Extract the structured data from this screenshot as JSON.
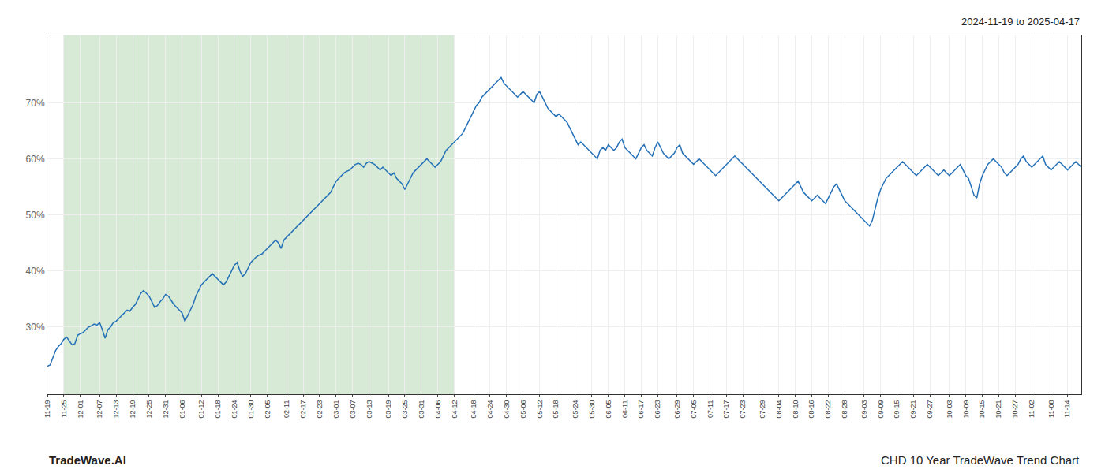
{
  "chart_data": {
    "type": "line",
    "title": "CHD 10 Year TradeWave Trend Chart",
    "subtitle": "2024-11-19 to 2025-04-17",
    "annotations": [
      {
        "text": "TradeWave.AI"
      }
    ],
    "color": "#2571b8",
    "shaded": {
      "start": "11-25",
      "end": "04-12",
      "color": "#d6ead6"
    },
    "ylim": [
      18,
      82
    ],
    "yticks": [
      {
        "value": 30,
        "label": "30%"
      },
      {
        "value": 40,
        "label": "40%"
      },
      {
        "value": 50,
        "label": "50%"
      },
      {
        "value": 60,
        "label": "60%"
      },
      {
        "value": 70,
        "label": "70%"
      }
    ],
    "grid": true,
    "categories": [
      "11-19",
      null,
      null,
      null,
      null,
      null,
      "11-25",
      null,
      null,
      null,
      null,
      null,
      "12-01",
      null,
      null,
      null,
      null,
      null,
      null,
      "12-07",
      null,
      null,
      null,
      null,
      null,
      "12-13",
      null,
      null,
      null,
      null,
      null,
      "12-19",
      null,
      null,
      null,
      null,
      null,
      "12-25",
      null,
      null,
      null,
      null,
      null,
      "12-31",
      null,
      null,
      null,
      null,
      null,
      "01-06",
      null,
      null,
      null,
      null,
      null,
      null,
      "01-12",
      null,
      null,
      null,
      null,
      null,
      "01-18",
      null,
      null,
      null,
      null,
      null,
      "01-24",
      null,
      null,
      null,
      null,
      null,
      "01-30",
      null,
      null,
      null,
      null,
      null,
      "02-05",
      null,
      null,
      null,
      null,
      null,
      null,
      "02-11",
      null,
      null,
      null,
      null,
      null,
      "02-17",
      null,
      null,
      null,
      null,
      null,
      "02-23",
      null,
      null,
      null,
      null,
      null,
      "03-01",
      null,
      null,
      null,
      null,
      null,
      "03-07",
      null,
      null,
      null,
      null,
      null,
      "03-13",
      null,
      null,
      null,
      null,
      null,
      null,
      "03-19",
      null,
      null,
      null,
      null,
      null,
      "03-25",
      null,
      null,
      null,
      null,
      null,
      "03-31",
      null,
      null,
      null,
      null,
      null,
      "04-06",
      null,
      null,
      null,
      null,
      null,
      "04-12",
      null,
      null,
      null,
      null,
      null,
      null,
      "04-18",
      null,
      null,
      null,
      null,
      null,
      "04-24",
      null,
      null,
      null,
      null,
      null,
      "04-30",
      null,
      null,
      null,
      null,
      null,
      "05-06",
      null,
      null,
      null,
      null,
      null,
      "05-12",
      null,
      null,
      null,
      null,
      null,
      "05-18",
      null,
      null,
      null,
      null,
      null,
      null,
      "05-24",
      null,
      null,
      null,
      null,
      null,
      "05-30",
      null,
      null,
      null,
      null,
      null,
      "06-05",
      null,
      null,
      null,
      null,
      null,
      "06-11",
      null,
      null,
      null,
      null,
      null,
      "06-17",
      null,
      null,
      null,
      null,
      null,
      "06-23",
      null,
      null,
      null,
      null,
      null,
      null,
      "06-29",
      null,
      null,
      null,
      null,
      null,
      "07-05",
      null,
      null,
      null,
      null,
      null,
      "07-11",
      null,
      null,
      null,
      null,
      null,
      "07-17",
      null,
      null,
      null,
      null,
      null,
      "07-23",
      null,
      null,
      null,
      null,
      null,
      null,
      "07-29",
      null,
      null,
      null,
      null,
      null,
      "08-04",
      null,
      null,
      null,
      null,
      null,
      "08-10",
      null,
      null,
      null,
      null,
      null,
      "08-16",
      null,
      null,
      null,
      null,
      null,
      "08-22",
      null,
      null,
      null,
      null,
      null,
      "08-28",
      null,
      null,
      null,
      null,
      null,
      null,
      "09-03",
      null,
      null,
      null,
      null,
      null,
      "09-09",
      null,
      null,
      null,
      null,
      null,
      "09-15",
      null,
      null,
      null,
      null,
      null,
      "09-21",
      null,
      null,
      null,
      null,
      null,
      "09-27",
      null,
      null,
      null,
      null,
      null,
      null,
      "10-03",
      null,
      null,
      null,
      null,
      null,
      "10-09",
      null,
      null,
      null,
      null,
      null,
      "10-15",
      null,
      null,
      null,
      null,
      null,
      "10-21",
      null,
      null,
      null,
      null,
      null,
      "10-27",
      null,
      null,
      null,
      null,
      null,
      "11-02",
      null,
      null,
      null,
      null,
      null,
      null,
      "11-08",
      null,
      null,
      null,
      null,
      null,
      "11-14",
      null,
      null,
      null,
      null,
      null
    ],
    "values": [
      23.0,
      23.2,
      24.5,
      25.8,
      26.5,
      27.0,
      27.8,
      28.2,
      27.5,
      26.8,
      27.0,
      28.5,
      28.8,
      29.0,
      29.5,
      30.0,
      30.2,
      30.5,
      30.3,
      30.8,
      29.5,
      28.0,
      29.5,
      30.0,
      30.8,
      31.0,
      31.5,
      32.0,
      32.5,
      33.0,
      32.8,
      33.5,
      34.0,
      35.0,
      36.0,
      36.5,
      36.0,
      35.5,
      34.5,
      33.5,
      33.8,
      34.5,
      35.0,
      35.8,
      35.5,
      34.8,
      34.0,
      33.5,
      33.0,
      32.5,
      31.0,
      32.0,
      33.0,
      34.0,
      35.5,
      36.5,
      37.5,
      38.0,
      38.5,
      39.0,
      39.5,
      39.0,
      38.5,
      38.0,
      37.5,
      38.0,
      39.0,
      40.0,
      41.0,
      41.5,
      40.0,
      39.0,
      39.5,
      40.5,
      41.5,
      42.0,
      42.5,
      42.8,
      43.0,
      43.5,
      44.0,
      44.5,
      45.0,
      45.5,
      45.0,
      44.0,
      45.5,
      46.0,
      46.5,
      47.0,
      47.5,
      48.0,
      48.5,
      49.0,
      49.5,
      50.0,
      50.5,
      51.0,
      51.5,
      52.0,
      52.5,
      53.0,
      53.5,
      54.0,
      55.0,
      56.0,
      56.5,
      57.0,
      57.5,
      57.8,
      58.0,
      58.5,
      59.0,
      59.2,
      59.0,
      58.5,
      59.2,
      59.5,
      59.3,
      59.0,
      58.5,
      58.0,
      58.5,
      58.0,
      57.5,
      57.0,
      57.5,
      56.5,
      56.0,
      55.5,
      54.5,
      55.5,
      56.5,
      57.5,
      58.0,
      58.5,
      59.0,
      59.5,
      60.0,
      59.5,
      59.0,
      58.5,
      59.0,
      59.5,
      60.5,
      61.5,
      62.0,
      62.5,
      63.0,
      63.5,
      64.0,
      64.5,
      65.5,
      66.5,
      67.5,
      68.5,
      69.5,
      70.0,
      71.0,
      71.5,
      72.0,
      72.5,
      73.0,
      73.5,
      74.0,
      74.5,
      73.5,
      73.0,
      72.5,
      72.0,
      71.5,
      71.0,
      71.5,
      72.0,
      71.5,
      71.0,
      70.5,
      70.0,
      71.5,
      72.0,
      71.0,
      70.0,
      69.0,
      68.5,
      68.0,
      67.5,
      68.0,
      67.5,
      67.0,
      66.5,
      65.5,
      64.5,
      63.5,
      62.5,
      63.0,
      62.5,
      62.0,
      61.5,
      61.0,
      60.5,
      60.0,
      61.5,
      62.0,
      61.5,
      62.5,
      62.0,
      61.5,
      62.0,
      63.0,
      63.5,
      62.0,
      61.5,
      61.0,
      60.5,
      60.0,
      61.0,
      62.0,
      62.5,
      61.5,
      61.0,
      60.5,
      62.0,
      63.0,
      62.0,
      61.0,
      60.5,
      60.0,
      60.5,
      61.0,
      62.0,
      62.5,
      61.0,
      60.5,
      60.0,
      59.5,
      59.0,
      59.5,
      60.0,
      59.5,
      59.0,
      58.5,
      58.0,
      57.5,
      57.0,
      57.5,
      58.0,
      58.5,
      59.0,
      59.5,
      60.0,
      60.5,
      60.0,
      59.5,
      59.0,
      58.5,
      58.0,
      57.5,
      57.0,
      56.5,
      56.0,
      55.5,
      55.0,
      54.5,
      54.0,
      53.5,
      53.0,
      52.5,
      53.0,
      53.5,
      54.0,
      54.5,
      55.0,
      55.5,
      56.0,
      55.0,
      54.0,
      53.5,
      53.0,
      52.5,
      53.0,
      53.5,
      53.0,
      52.5,
      52.0,
      53.0,
      54.0,
      55.0,
      55.5,
      54.5,
      53.5,
      52.5,
      52.0,
      51.5,
      51.0,
      50.5,
      50.0,
      49.5,
      49.0,
      48.5,
      48.0,
      49.0,
      51.0,
      53.0,
      54.5,
      55.5,
      56.5,
      57.0,
      57.5,
      58.0,
      58.5,
      59.0,
      59.5,
      59.0,
      58.5,
      58.0,
      57.5,
      57.0,
      57.5,
      58.0,
      58.5,
      59.0,
      58.5,
      58.0,
      57.5,
      57.0,
      57.5,
      58.0,
      57.5,
      57.0,
      57.5,
      58.0,
      58.5,
      59.0,
      58.0,
      57.0,
      56.5,
      55.0,
      53.5,
      53.0,
      55.5,
      57.0,
      58.0,
      59.0,
      59.5,
      60.0,
      59.5,
      59.0,
      58.5,
      57.5,
      57.0,
      57.5,
      58.0,
      58.5,
      59.0,
      60.0,
      60.5,
      59.5,
      59.0,
      58.5,
      59.0,
      59.5,
      60.0,
      60.5,
      59.0,
      58.5,
      58.0,
      58.5,
      59.0,
      59.5,
      59.0,
      58.5,
      58.0,
      58.5,
      59.0,
      59.5,
      59.0,
      58.5
    ]
  }
}
